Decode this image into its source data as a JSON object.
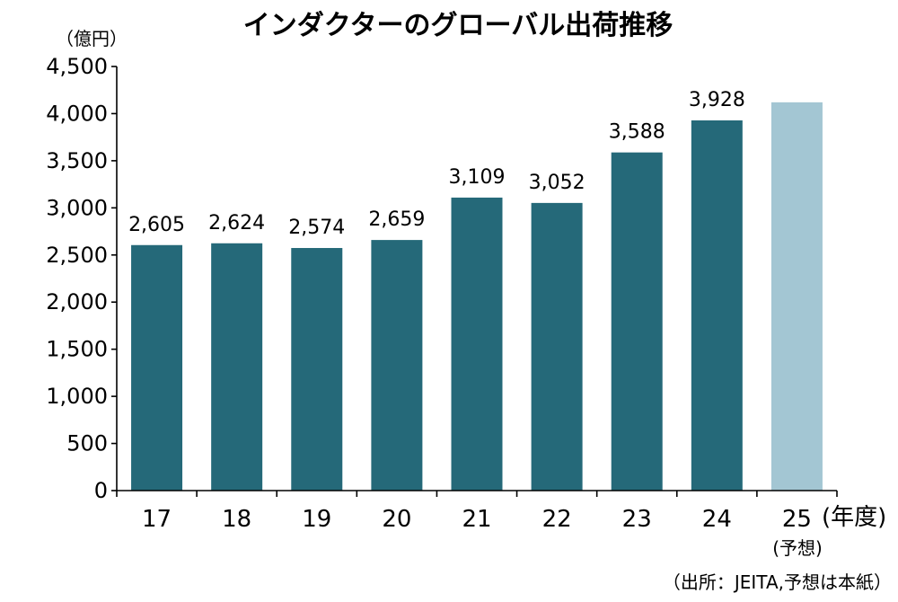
{
  "chart_data": {
    "type": "bar",
    "title": "インダクターのグローバル出荷推移",
    "unit_label": "（億円）",
    "x_unit_label": "(年度)",
    "forecast_note": "(予想)",
    "source": "（出所：JEITA,予想は本紙）",
    "categories": [
      "17",
      "18",
      "19",
      "20",
      "21",
      "22",
      "23",
      "24",
      "25"
    ],
    "values": [
      2605,
      2624,
      2574,
      2659,
      3109,
      3052,
      3588,
      3928,
      4120
    ],
    "data_labels": [
      "2,605",
      "2,624",
      "2,574",
      "2,659",
      "3,109",
      "3,052",
      "3,588",
      "3,928",
      ""
    ],
    "forecast_flags": [
      false,
      false,
      false,
      false,
      false,
      false,
      false,
      false,
      true
    ],
    "ylim": [
      0,
      4500
    ],
    "y_ticks": [
      "0",
      "500",
      "1,000",
      "1,500",
      "2,000",
      "2,500",
      "3,000",
      "3,500",
      "4,000",
      "4,500"
    ],
    "y_tick_values": [
      0,
      500,
      1000,
      1500,
      2000,
      2500,
      3000,
      3500,
      4000,
      4500
    ],
    "colors": {
      "actual": "#256979",
      "forecast": "#a3c6d3",
      "axis": "#000000"
    },
    "grid": false,
    "legend": "none"
  }
}
